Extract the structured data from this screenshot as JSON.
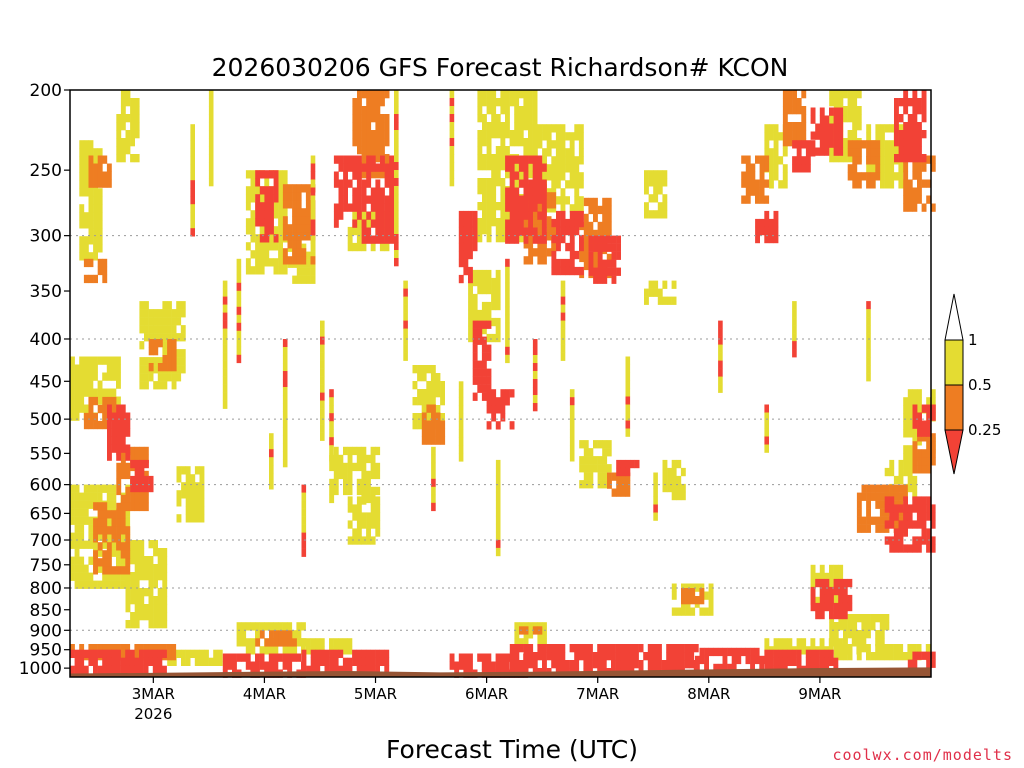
{
  "chart_data": {
    "type": "heatmap",
    "title": "2026030206 GFS Forecast Richardson# KCON",
    "xlabel": "Forecast Time (UTC)",
    "ylabel": "",
    "credit": "coolwx.com/modelts",
    "x_axis": {
      "unit": "forecast hour from 2026-03-02 06Z",
      "range_hours": [
        0,
        186
      ],
      "ticks": [
        {
          "hour": 18,
          "label": "3MAR",
          "sublabel": "2026"
        },
        {
          "hour": 42,
          "label": "4MAR",
          "sublabel": ""
        },
        {
          "hour": 66,
          "label": "5MAR",
          "sublabel": ""
        },
        {
          "hour": 90,
          "label": "6MAR",
          "sublabel": ""
        },
        {
          "hour": 114,
          "label": "7MAR",
          "sublabel": ""
        },
        {
          "hour": 138,
          "label": "8MAR",
          "sublabel": ""
        },
        {
          "hour": 162,
          "label": "9MAR",
          "sublabel": ""
        }
      ]
    },
    "y_axis": {
      "unit": "hPa",
      "scale": "log",
      "range": [
        1025,
        200
      ],
      "ticks": [
        "200",
        "250",
        "300",
        "350",
        "400",
        "450",
        "500",
        "550",
        "600",
        "650",
        "700",
        "750",
        "800",
        "850",
        "900",
        "950",
        "1000"
      ],
      "gridlines": [
        300,
        400,
        500,
        600,
        700,
        800,
        900
      ]
    },
    "legend": {
      "placement": "right",
      "levels": [
        "1",
        "0.5",
        "0.25"
      ],
      "colors": {
        "lt025": "#f24236",
        "025_05": "#ee7d22",
        "05_1": "#e4dc32",
        "ge1": "#ffffff"
      }
    },
    "ground_color": "#965535",
    "ground_top_hpa": [
      [
        0,
        1015
      ],
      [
        20,
        1013
      ],
      [
        40,
        1010
      ],
      [
        60,
        1008
      ],
      [
        80,
        1012
      ],
      [
        100,
        1010
      ],
      [
        130,
        1005
      ],
      [
        160,
        1000
      ],
      [
        186,
        998
      ]
    ],
    "regions": [
      {
        "cat": "y",
        "h0": 2,
        "h1": 6,
        "p0": 230,
        "p1": 320
      },
      {
        "cat": "y",
        "h0": 10,
        "h1": 14,
        "p0": 200,
        "p1": 240
      },
      {
        "cat": "o",
        "h0": 4,
        "h1": 8,
        "p0": 240,
        "p1": 260
      },
      {
        "cat": "o",
        "h0": 3,
        "h1": 7,
        "p0": 320,
        "p1": 340
      },
      {
        "cat": "y",
        "h0": 0,
        "h1": 10,
        "p0": 420,
        "p1": 500
      },
      {
        "cat": "o",
        "h0": 3,
        "h1": 10,
        "p0": 470,
        "p1": 510
      },
      {
        "cat": "r",
        "h0": 8,
        "h1": 12,
        "p0": 480,
        "p1": 560
      },
      {
        "cat": "o",
        "h0": 10,
        "h1": 16,
        "p0": 540,
        "p1": 640
      },
      {
        "cat": "r",
        "h0": 13,
        "h1": 17,
        "p0": 560,
        "p1": 600
      },
      {
        "cat": "y",
        "h0": 0,
        "h1": 12,
        "p0": 600,
        "p1": 800
      },
      {
        "cat": "o",
        "h0": 5,
        "h1": 12,
        "p0": 630,
        "p1": 760
      },
      {
        "cat": "y",
        "h0": 12,
        "h1": 20,
        "p0": 700,
        "p1": 880
      },
      {
        "cat": "y",
        "h0": 15,
        "h1": 24,
        "p0": 360,
        "p1": 450
      },
      {
        "cat": "o",
        "h0": 17,
        "h1": 22,
        "p0": 400,
        "p1": 430
      },
      {
        "cat": "y",
        "h0": 23,
        "h1": 28,
        "p0": 570,
        "p1": 660
      },
      {
        "cat": "y",
        "h0": 38,
        "h1": 46,
        "p0": 250,
        "p1": 330
      },
      {
        "cat": "r",
        "h0": 40,
        "h1": 44,
        "p0": 250,
        "p1": 300
      },
      {
        "cat": "o",
        "h0": 46,
        "h1": 52,
        "p0": 260,
        "p1": 320
      },
      {
        "cat": "y",
        "h0": 47,
        "h1": 52,
        "p0": 300,
        "p1": 340
      },
      {
        "cat": "y",
        "h0": 56,
        "h1": 66,
        "p0": 540,
        "p1": 630
      },
      {
        "cat": "y",
        "h0": 60,
        "h1": 66,
        "p0": 620,
        "p1": 700
      },
      {
        "cat": "r",
        "h0": 57,
        "h1": 62,
        "p0": 240,
        "p1": 290
      },
      {
        "cat": "r",
        "h0": 63,
        "h1": 69,
        "p0": 240,
        "p1": 300
      },
      {
        "cat": "o",
        "h0": 61,
        "h1": 68,
        "p0": 200,
        "p1": 250
      },
      {
        "cat": "y",
        "h0": 60,
        "h1": 68,
        "p0": 280,
        "p1": 310
      },
      {
        "cat": "o",
        "h0": 76,
        "h1": 80,
        "p0": 480,
        "p1": 530
      },
      {
        "cat": "y",
        "h0": 74,
        "h1": 80,
        "p0": 430,
        "p1": 510
      },
      {
        "cat": "r",
        "h0": 84,
        "h1": 87,
        "p0": 280,
        "p1": 340
      },
      {
        "cat": "r",
        "h0": 87,
        "h1": 90,
        "p0": 380,
        "p1": 470
      },
      {
        "cat": "r",
        "h0": 90,
        "h1": 95,
        "p0": 460,
        "p1": 510
      },
      {
        "cat": "y",
        "h0": 86,
        "h1": 92,
        "p0": 330,
        "p1": 400
      },
      {
        "cat": "y",
        "h0": 88,
        "h1": 100,
        "p0": 200,
        "p1": 300
      },
      {
        "cat": "r",
        "h0": 94,
        "h1": 102,
        "p0": 240,
        "p1": 300
      },
      {
        "cat": "o",
        "h0": 98,
        "h1": 104,
        "p0": 260,
        "p1": 320
      },
      {
        "cat": "y",
        "h0": 100,
        "h1": 110,
        "p0": 220,
        "p1": 280
      },
      {
        "cat": "r",
        "h0": 104,
        "h1": 110,
        "p0": 280,
        "p1": 330
      },
      {
        "cat": "o",
        "h0": 110,
        "h1": 116,
        "p0": 270,
        "p1": 330
      },
      {
        "cat": "r",
        "h0": 112,
        "h1": 118,
        "p0": 300,
        "p1": 340
      },
      {
        "cat": "y",
        "h0": 110,
        "h1": 116,
        "p0": 530,
        "p1": 600
      },
      {
        "cat": "r",
        "h0": 118,
        "h1": 122,
        "p0": 560,
        "p1": 580
      },
      {
        "cat": "o",
        "h0": 116,
        "h1": 120,
        "p0": 580,
        "p1": 620
      },
      {
        "cat": "y",
        "h0": 124,
        "h1": 128,
        "p0": 250,
        "p1": 280
      },
      {
        "cat": "y",
        "h0": 124,
        "h1": 130,
        "p0": 340,
        "p1": 360
      },
      {
        "cat": "o",
        "h0": 132,
        "h1": 136,
        "p0": 800,
        "p1": 830
      },
      {
        "cat": "y",
        "h0": 130,
        "h1": 138,
        "p0": 790,
        "p1": 860
      },
      {
        "cat": "y",
        "h0": 128,
        "h1": 132,
        "p0": 560,
        "p1": 620
      },
      {
        "cat": "o",
        "h0": 145,
        "h1": 150,
        "p0": 240,
        "p1": 270
      },
      {
        "cat": "r",
        "h0": 148,
        "h1": 152,
        "p0": 280,
        "p1": 300
      },
      {
        "cat": "y",
        "h0": 150,
        "h1": 154,
        "p0": 220,
        "p1": 260
      },
      {
        "cat": "o",
        "h0": 154,
        "h1": 158,
        "p0": 200,
        "p1": 230
      },
      {
        "cat": "r",
        "h0": 156,
        "h1": 160,
        "p0": 230,
        "p1": 250
      },
      {
        "cat": "r",
        "h0": 160,
        "h1": 166,
        "p0": 210,
        "p1": 240
      },
      {
        "cat": "y",
        "h0": 164,
        "h1": 170,
        "p0": 200,
        "p1": 240
      },
      {
        "cat": "o",
        "h0": 168,
        "h1": 174,
        "p0": 230,
        "p1": 260
      },
      {
        "cat": "y",
        "h0": 172,
        "h1": 180,
        "p0": 220,
        "p1": 260
      },
      {
        "cat": "r",
        "h0": 178,
        "h1": 184,
        "p0": 200,
        "p1": 240
      },
      {
        "cat": "o",
        "h0": 180,
        "h1": 186,
        "p0": 240,
        "p1": 280
      },
      {
        "cat": "y",
        "h0": 160,
        "h1": 166,
        "p0": 750,
        "p1": 830
      },
      {
        "cat": "r",
        "h0": 160,
        "h1": 168,
        "p0": 780,
        "p1": 860
      },
      {
        "cat": "y",
        "h0": 164,
        "h1": 176,
        "p0": 860,
        "p1": 920
      },
      {
        "cat": "o",
        "h0": 170,
        "h1": 180,
        "p0": 600,
        "p1": 680
      },
      {
        "cat": "r",
        "h0": 176,
        "h1": 186,
        "p0": 620,
        "p1": 720
      },
      {
        "cat": "y",
        "h0": 180,
        "h1": 186,
        "p0": 460,
        "p1": 560
      },
      {
        "cat": "r",
        "h0": 182,
        "h1": 186,
        "p0": 480,
        "p1": 520
      },
      {
        "cat": "o",
        "h0": 182,
        "h1": 186,
        "p0": 520,
        "p1": 580
      },
      {
        "cat": "y",
        "h0": 176,
        "h1": 182,
        "p0": 560,
        "p1": 620
      },
      {
        "cat": "r",
        "h0": 0,
        "h1": 20,
        "p0": 950,
        "p1": 1010
      },
      {
        "cat": "o",
        "h0": 0,
        "h1": 22,
        "p0": 935,
        "p1": 960
      },
      {
        "cat": "y",
        "h0": 20,
        "h1": 32,
        "p0": 950,
        "p1": 985
      },
      {
        "cat": "r",
        "h0": 33,
        "h1": 50,
        "p0": 960,
        "p1": 1005
      },
      {
        "cat": "y",
        "h0": 36,
        "h1": 50,
        "p0": 880,
        "p1": 960
      },
      {
        "cat": "o",
        "h0": 40,
        "h1": 48,
        "p0": 900,
        "p1": 940
      },
      {
        "cat": "r",
        "h0": 50,
        "h1": 68,
        "p0": 950,
        "p1": 1005
      },
      {
        "cat": "y",
        "h0": 48,
        "h1": 60,
        "p0": 920,
        "p1": 955
      },
      {
        "cat": "r",
        "h0": 82,
        "h1": 98,
        "p0": 960,
        "p1": 1007
      },
      {
        "cat": "r",
        "h0": 95,
        "h1": 135,
        "p0": 935,
        "p1": 1005
      },
      {
        "cat": "y",
        "h0": 96,
        "h1": 102,
        "p0": 880,
        "p1": 930
      },
      {
        "cat": "o",
        "h0": 97,
        "h1": 101,
        "p0": 890,
        "p1": 910
      },
      {
        "cat": "r",
        "h0": 135,
        "h1": 150,
        "p0": 945,
        "p1": 1000
      },
      {
        "cat": "r",
        "h0": 150,
        "h1": 165,
        "p0": 950,
        "p1": 997
      },
      {
        "cat": "y",
        "h0": 150,
        "h1": 170,
        "p0": 920,
        "p1": 950
      },
      {
        "cat": "y",
        "h0": 165,
        "h1": 186,
        "p0": 935,
        "p1": 960
      },
      {
        "cat": "r",
        "h0": 180,
        "h1": 186,
        "p0": 955,
        "p1": 997
      }
    ],
    "streaks": [
      {
        "h": 26,
        "p0": 220,
        "p1": 300
      },
      {
        "h": 30,
        "p0": 200,
        "p1": 260
      },
      {
        "h": 33,
        "p0": 340,
        "p1": 480
      },
      {
        "h": 36,
        "p0": 320,
        "p1": 420
      },
      {
        "h": 43,
        "p0": 520,
        "p1": 600
      },
      {
        "h": 46,
        "p0": 400,
        "p1": 560
      },
      {
        "h": 50,
        "p0": 600,
        "p1": 720
      },
      {
        "h": 52,
        "p0": 240,
        "p1": 300
      },
      {
        "h": 54,
        "p0": 380,
        "p1": 520
      },
      {
        "h": 56,
        "p0": 460,
        "p1": 560
      },
      {
        "h": 70,
        "p0": 200,
        "p1": 320
      },
      {
        "h": 72,
        "p0": 340,
        "p1": 420
      },
      {
        "h": 78,
        "p0": 540,
        "p1": 640
      },
      {
        "h": 82,
        "p0": 200,
        "p1": 260
      },
      {
        "h": 84,
        "p0": 450,
        "p1": 560
      },
      {
        "h": 92,
        "p0": 560,
        "p1": 720
      },
      {
        "h": 94,
        "p0": 320,
        "p1": 420
      },
      {
        "h": 100,
        "p0": 400,
        "p1": 480
      },
      {
        "h": 106,
        "p0": 340,
        "p1": 420
      },
      {
        "h": 108,
        "p0": 460,
        "p1": 560
      },
      {
        "h": 120,
        "p0": 420,
        "p1": 520
      },
      {
        "h": 126,
        "p0": 580,
        "p1": 660
      },
      {
        "h": 140,
        "p0": 380,
        "p1": 460
      },
      {
        "h": 150,
        "p0": 480,
        "p1": 540
      },
      {
        "h": 156,
        "p0": 360,
        "p1": 420
      },
      {
        "h": 172,
        "p0": 360,
        "p1": 440
      }
    ]
  }
}
